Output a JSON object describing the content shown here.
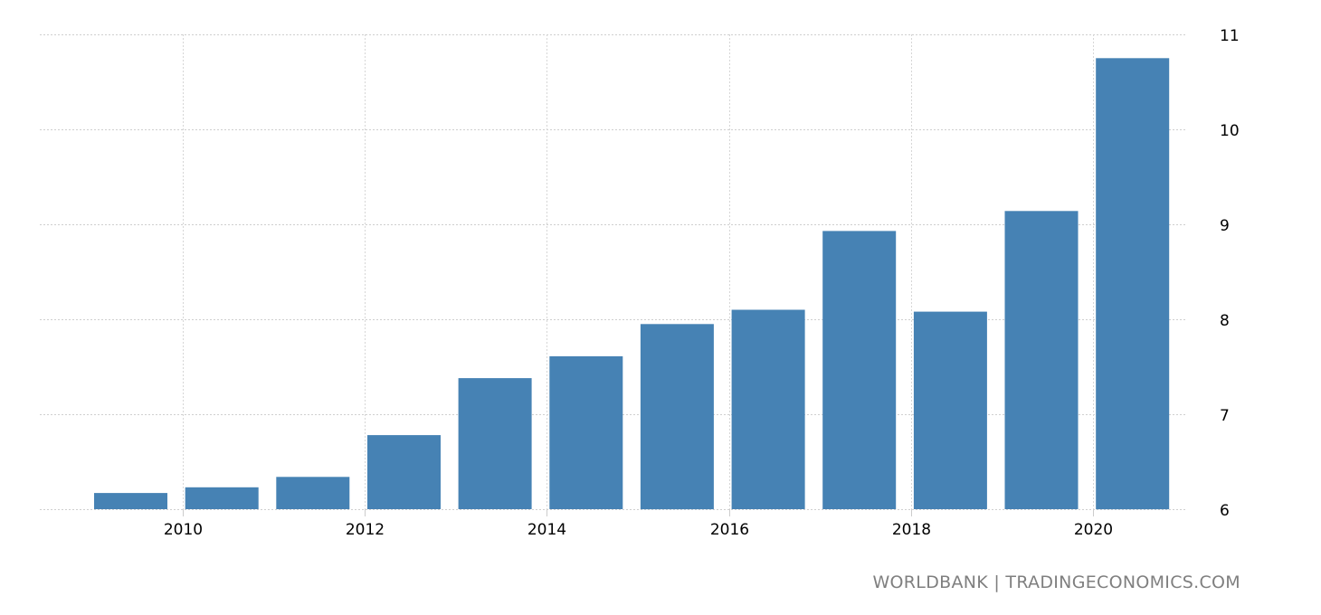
{
  "chart_data": {
    "type": "bar",
    "title": "",
    "xlabel": "",
    "ylabel": "",
    "categories": [
      "2009",
      "2010",
      "2011",
      "2012",
      "2013",
      "2014",
      "2015",
      "2016",
      "2017",
      "2018",
      "2019",
      "2020"
    ],
    "values": [
      6.17,
      6.23,
      6.34,
      6.78,
      7.38,
      7.61,
      7.95,
      8.1,
      8.93,
      8.08,
      9.14,
      10.75
    ],
    "ylim": [
      6,
      11
    ],
    "y_ticks": [
      "6",
      "7",
      "8",
      "9",
      "10",
      "11"
    ],
    "x_ticks": [
      "2010",
      "2012",
      "2014",
      "2016",
      "2018",
      "2020"
    ],
    "y_axis_position": "right",
    "grid": true,
    "bar_color": "#4682b4"
  },
  "source": "WORLDBANK | TRADINGECONOMICS.COM"
}
